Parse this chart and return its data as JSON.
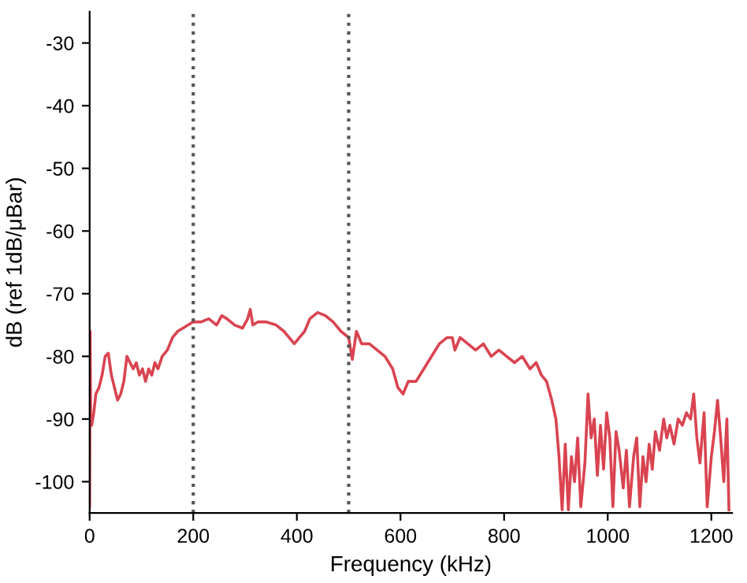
{
  "chart_data": {
    "type": "line",
    "xlabel": "Frequency (kHz)",
    "ylabel": "dB (ref 1dB/μBar)",
    "xlim": [
      0,
      1240
    ],
    "ylim": [
      -105,
      -25
    ],
    "xticks": [
      0,
      200,
      400,
      600,
      800,
      1000,
      1200
    ],
    "yticks": [
      -100,
      -90,
      -80,
      -70,
      -60,
      -50,
      -40,
      -30
    ],
    "grid": false,
    "line_style": "solid",
    "marker": "none",
    "series": [
      {
        "color": "#d94450",
        "x": [
          0,
          1,
          2,
          4,
          8,
          12,
          18,
          24,
          30,
          36,
          42,
          48,
          54,
          60,
          66,
          72,
          78,
          84,
          90,
          96,
          102,
          108,
          114,
          120,
          126,
          132,
          140,
          150,
          160,
          170,
          180,
          190,
          200,
          215,
          230,
          245,
          255,
          265,
          280,
          295,
          305,
          310,
          315,
          325,
          340,
          360,
          375,
          385,
          395,
          405,
          415,
          425,
          440,
          455,
          470,
          485,
          500,
          507,
          515,
          525,
          540,
          555,
          570,
          585,
          595,
          605,
          615,
          630,
          645,
          660,
          675,
          690,
          700,
          705,
          715,
          730,
          745,
          760,
          775,
          790,
          805,
          820,
          835,
          850,
          862,
          872,
          882,
          892,
          900,
          906,
          912,
          918,
          924,
          930,
          936,
          942,
          948,
          956,
          962,
          968,
          974,
          980,
          986,
          992,
          998,
          1004,
          1010,
          1016,
          1022,
          1030,
          1036,
          1042,
          1050,
          1056,
          1062,
          1068,
          1074,
          1080,
          1086,
          1092,
          1100,
          1108,
          1114,
          1120,
          1128,
          1136,
          1144,
          1152,
          1160,
          1166,
          1172,
          1178,
          1186,
          1192,
          1200,
          1206,
          1212,
          1218,
          1224,
          1230,
          1234
        ],
        "values": [
          -104,
          -76,
          -90,
          -91,
          -89,
          -86,
          -85,
          -83,
          -80,
          -79.5,
          -83,
          -85,
          -87,
          -86,
          -84,
          -80,
          -81,
          -82,
          -81,
          -83,
          -82,
          -84,
          -82,
          -83,
          -81,
          -82,
          -80,
          -79,
          -77,
          -76,
          -75.5,
          -75,
          -74.5,
          -74.5,
          -74,
          -75,
          -73.5,
          -74,
          -75,
          -75.5,
          -74,
          -72.5,
          -75,
          -74.5,
          -74.5,
          -75,
          -76,
          -77,
          -78,
          -77,
          -76,
          -74,
          -73,
          -73.5,
          -74.5,
          -76,
          -77,
          -80.5,
          -76,
          -78,
          -78,
          -79,
          -80,
          -82,
          -85,
          -86,
          -84,
          -84,
          -82,
          -80,
          -78,
          -77,
          -77,
          -79,
          -77,
          -78,
          -79,
          -78,
          -80,
          -79,
          -80,
          -81,
          -80,
          -82,
          -81,
          -83,
          -84,
          -87,
          -90,
          -96,
          -104.5,
          -94,
          -104.5,
          -96,
          -100,
          -93,
          -104,
          -97,
          -86,
          -93,
          -90,
          -99,
          -91,
          -98,
          -89,
          -93,
          -104,
          -92,
          -95,
          -101,
          -95,
          -104,
          -96,
          -93,
          -104,
          -96,
          -100,
          -94,
          -98,
          -92,
          -95,
          -90,
          -93,
          -91,
          -94,
          -90,
          -91,
          -89,
          -90,
          -86,
          -93,
          -97,
          -89,
          -104,
          -96,
          -92,
          -87,
          -93,
          -100,
          -90,
          -104.5
        ]
      }
    ],
    "ref_lines": [
      {
        "axis": "x",
        "value": 200,
        "color": "#555555",
        "line_style": "dotted"
      },
      {
        "axis": "x",
        "value": 500,
        "color": "#555555",
        "line_style": "dotted"
      }
    ]
  }
}
